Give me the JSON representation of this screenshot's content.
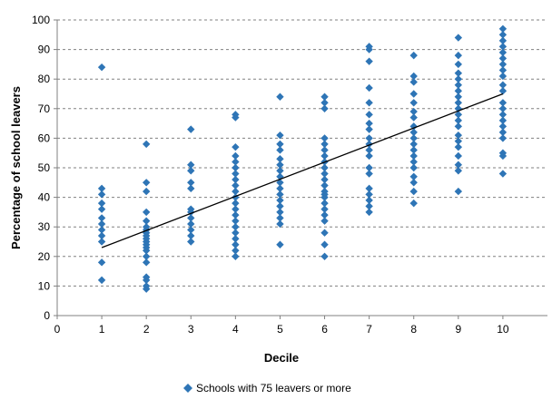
{
  "chart_data": {
    "type": "scatter",
    "xlabel": "Decile",
    "ylabel": "Percentage of school leavers",
    "xlim": [
      0,
      11
    ],
    "ylim": [
      0,
      100
    ],
    "xticks": [
      0,
      1,
      2,
      3,
      4,
      5,
      6,
      7,
      8,
      9,
      10
    ],
    "yticks": [
      0,
      10,
      20,
      30,
      40,
      50,
      60,
      70,
      80,
      90,
      100
    ],
    "grid": "horizontal-dashed",
    "legend_position": "bottom",
    "marker_color": "#2e75b6",
    "series": [
      {
        "name": "Schools with 75 leavers or more",
        "marker": "diamond",
        "points": [
          [
            1,
            84
          ],
          [
            1,
            43
          ],
          [
            1,
            41
          ],
          [
            1,
            38
          ],
          [
            1,
            36
          ],
          [
            1,
            33
          ],
          [
            1,
            31
          ],
          [
            1,
            29
          ],
          [
            1,
            27
          ],
          [
            1,
            25
          ],
          [
            1,
            18
          ],
          [
            1,
            12
          ],
          [
            2,
            58
          ],
          [
            2,
            45
          ],
          [
            2,
            42
          ],
          [
            2,
            35
          ],
          [
            2,
            32
          ],
          [
            2,
            30
          ],
          [
            2,
            29
          ],
          [
            2,
            28
          ],
          [
            2,
            27
          ],
          [
            2,
            26
          ],
          [
            2,
            25
          ],
          [
            2,
            24
          ],
          [
            2,
            23
          ],
          [
            2,
            22
          ],
          [
            2,
            20
          ],
          [
            2,
            18
          ],
          [
            2,
            13
          ],
          [
            2,
            12
          ],
          [
            2,
            10
          ],
          [
            2,
            9
          ],
          [
            3,
            63
          ],
          [
            3,
            51
          ],
          [
            3,
            49
          ],
          [
            3,
            45
          ],
          [
            3,
            43
          ],
          [
            3,
            36
          ],
          [
            3,
            35
          ],
          [
            3,
            33
          ],
          [
            3,
            31
          ],
          [
            3,
            29
          ],
          [
            3,
            27
          ],
          [
            3,
            25
          ],
          [
            4,
            68
          ],
          [
            4,
            67
          ],
          [
            4,
            57
          ],
          [
            4,
            54
          ],
          [
            4,
            52
          ],
          [
            4,
            50
          ],
          [
            4,
            48
          ],
          [
            4,
            46
          ],
          [
            4,
            44
          ],
          [
            4,
            42
          ],
          [
            4,
            40
          ],
          [
            4,
            38
          ],
          [
            4,
            36
          ],
          [
            4,
            34
          ],
          [
            4,
            32
          ],
          [
            4,
            30
          ],
          [
            4,
            28
          ],
          [
            4,
            26
          ],
          [
            4,
            24
          ],
          [
            4,
            22
          ],
          [
            4,
            20
          ],
          [
            5,
            74
          ],
          [
            5,
            61
          ],
          [
            5,
            58
          ],
          [
            5,
            56
          ],
          [
            5,
            53
          ],
          [
            5,
            51
          ],
          [
            5,
            49
          ],
          [
            5,
            47
          ],
          [
            5,
            45
          ],
          [
            5,
            43
          ],
          [
            5,
            41
          ],
          [
            5,
            39
          ],
          [
            5,
            37
          ],
          [
            5,
            35
          ],
          [
            5,
            33
          ],
          [
            5,
            31
          ],
          [
            5,
            24
          ],
          [
            6,
            74
          ],
          [
            6,
            72
          ],
          [
            6,
            70
          ],
          [
            6,
            60
          ],
          [
            6,
            58
          ],
          [
            6,
            56
          ],
          [
            6,
            54
          ],
          [
            6,
            52
          ],
          [
            6,
            50
          ],
          [
            6,
            48
          ],
          [
            6,
            46
          ],
          [
            6,
            44
          ],
          [
            6,
            42
          ],
          [
            6,
            41
          ],
          [
            6,
            40
          ],
          [
            6,
            38
          ],
          [
            6,
            36
          ],
          [
            6,
            34
          ],
          [
            6,
            32
          ],
          [
            6,
            28
          ],
          [
            6,
            24
          ],
          [
            6,
            20
          ],
          [
            7,
            91
          ],
          [
            7,
            90
          ],
          [
            7,
            86
          ],
          [
            7,
            77
          ],
          [
            7,
            72
          ],
          [
            7,
            68
          ],
          [
            7,
            65
          ],
          [
            7,
            63
          ],
          [
            7,
            60
          ],
          [
            7,
            58
          ],
          [
            7,
            56
          ],
          [
            7,
            54
          ],
          [
            7,
            50
          ],
          [
            7,
            48
          ],
          [
            7,
            43
          ],
          [
            7,
            41
          ],
          [
            7,
            39
          ],
          [
            7,
            37
          ],
          [
            7,
            35
          ],
          [
            8,
            88
          ],
          [
            8,
            81
          ],
          [
            8,
            79
          ],
          [
            8,
            75
          ],
          [
            8,
            72
          ],
          [
            8,
            69
          ],
          [
            8,
            67
          ],
          [
            8,
            64
          ],
          [
            8,
            62
          ],
          [
            8,
            60
          ],
          [
            8,
            58
          ],
          [
            8,
            56
          ],
          [
            8,
            54
          ],
          [
            8,
            52
          ],
          [
            8,
            50
          ],
          [
            8,
            47
          ],
          [
            8,
            45
          ],
          [
            8,
            42
          ],
          [
            8,
            38
          ],
          [
            9,
            94
          ],
          [
            9,
            88
          ],
          [
            9,
            85
          ],
          [
            9,
            82
          ],
          [
            9,
            80
          ],
          [
            9,
            78
          ],
          [
            9,
            76
          ],
          [
            9,
            74
          ],
          [
            9,
            72
          ],
          [
            9,
            70
          ],
          [
            9,
            68
          ],
          [
            9,
            66
          ],
          [
            9,
            64
          ],
          [
            9,
            61
          ],
          [
            9,
            59
          ],
          [
            9,
            57
          ],
          [
            9,
            54
          ],
          [
            9,
            51
          ],
          [
            9,
            49
          ],
          [
            9,
            42
          ],
          [
            10,
            97
          ],
          [
            10,
            95
          ],
          [
            10,
            93
          ],
          [
            10,
            91
          ],
          [
            10,
            89
          ],
          [
            10,
            87
          ],
          [
            10,
            85
          ],
          [
            10,
            83
          ],
          [
            10,
            81
          ],
          [
            10,
            78
          ],
          [
            10,
            76
          ],
          [
            10,
            72
          ],
          [
            10,
            70
          ],
          [
            10,
            68
          ],
          [
            10,
            66
          ],
          [
            10,
            64
          ],
          [
            10,
            62
          ],
          [
            10,
            60
          ],
          [
            10,
            55
          ],
          [
            10,
            54
          ],
          [
            10,
            48
          ]
        ]
      }
    ],
    "trendline": {
      "color": "#000000",
      "points": [
        [
          1,
          23
        ],
        [
          10,
          75
        ]
      ]
    }
  }
}
